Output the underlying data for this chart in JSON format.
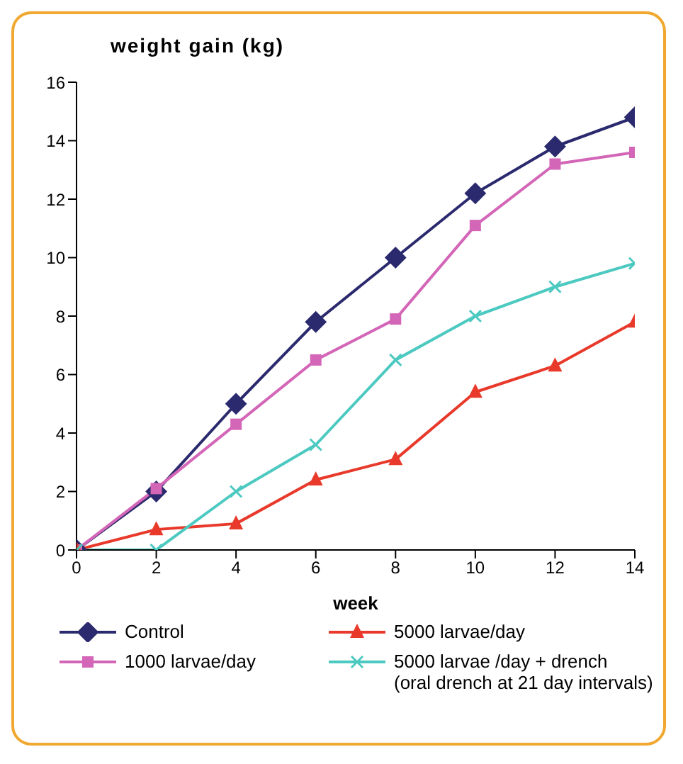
{
  "chart_data": {
    "type": "line",
    "title": "weight gain (kg)",
    "xlabel": "week",
    "x": [
      0,
      2,
      4,
      6,
      8,
      10,
      12,
      14
    ],
    "xlim": [
      0,
      14
    ],
    "xticks": [
      0,
      2,
      4,
      6,
      8,
      10,
      12,
      14
    ],
    "ylim": [
      0,
      16
    ],
    "yticks": [
      0,
      2,
      4,
      6,
      8,
      10,
      12,
      14,
      16
    ],
    "grid": false,
    "legend": "bottom",
    "series": [
      {
        "name": "Control",
        "color": "#2b2a6e",
        "marker": "diamond",
        "values": [
          0,
          2,
          5,
          7.8,
          10,
          12.2,
          13.8,
          14.8
        ]
      },
      {
        "name": "1000 larvae/day",
        "color": "#d466b8",
        "marker": "square",
        "values": [
          0,
          2.1,
          4.3,
          6.5,
          7.9,
          11.1,
          13.2,
          13.6
        ]
      },
      {
        "name": "5000 larvae/day",
        "color": "#e8392b",
        "marker": "triangle",
        "values": [
          0,
          0.7,
          0.9,
          2.4,
          3.1,
          5.4,
          6.3,
          7.8
        ]
      },
      {
        "name": "5000 larvae /day + drench",
        "color": "#4cc9c0",
        "marker": "cross",
        "values": [
          0,
          0,
          2,
          3.6,
          6.5,
          8,
          9,
          9.8
        ]
      }
    ],
    "annotations": [
      "(oral drench at 21 day intervals)"
    ]
  }
}
